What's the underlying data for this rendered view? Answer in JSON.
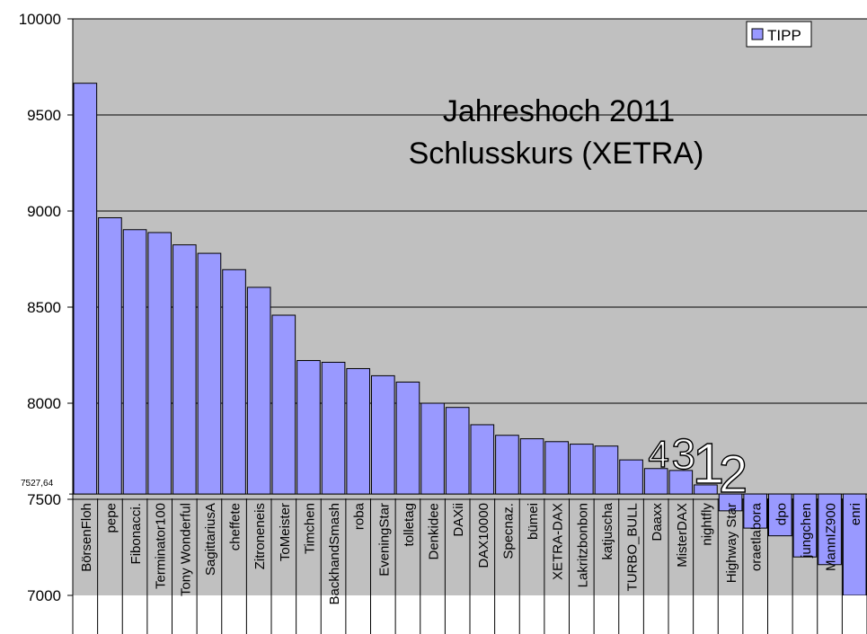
{
  "chart_data": {
    "type": "bar",
    "title": [
      "Jahreshoch 2011",
      "Schlusskurs (XETRA)"
    ],
    "ylim": [
      7000,
      10000
    ],
    "yticks": [
      7000,
      7500,
      8000,
      8500,
      9000,
      9500,
      10000
    ],
    "grid": true,
    "legend": {
      "position": "top-right",
      "entries": [
        "TIPP"
      ]
    },
    "reference_line": {
      "value": 7527.64,
      "label": "7527,64"
    },
    "colors": {
      "bar": "#9999ff",
      "plot_bg": "#c0c0c0",
      "grid": "#000000"
    },
    "categories": [
      "BörsenFloh",
      "pepe",
      "Fibonacci.",
      "Terminator100",
      "Tony Wonderful",
      "SagittariusA",
      "cheffete",
      "Zitroneneis",
      "ToMeister",
      "Timchen",
      "BackhandSmash",
      "roba",
      "EveningStar",
      "tolletag",
      "Denkidee",
      "DAXii",
      "DAX10000",
      "Specnaz.",
      "bümei",
      "XETRA-DAX",
      "Lakritzbonbon",
      "katjuscha",
      "TURBO_BULL",
      "Daaxx",
      "MisterDAX",
      "nightfly",
      "Highway Star",
      "oraetlabora",
      "dpo",
      "jungchen",
      "MannIZ900",
      "enri"
    ],
    "series": [
      {
        "name": "TIPP",
        "values": [
          9665,
          8965,
          8903,
          8888,
          8824,
          8780,
          8695,
          8603,
          8458,
          8222,
          8213,
          8180,
          8143,
          8110,
          8000,
          7978,
          7888,
          7833,
          7815,
          7800,
          7787,
          7777,
          7705,
          7660,
          7650,
          7575,
          7440,
          7350,
          7310,
          7200,
          7160,
          7000
        ]
      }
    ],
    "rank_annotations": [
      {
        "text": "4",
        "category": "Daaxx"
      },
      {
        "text": "3",
        "category": "MisterDAX"
      },
      {
        "text": "1",
        "category": "nightfly"
      },
      {
        "text": "2",
        "category": "Highway Star"
      }
    ]
  }
}
